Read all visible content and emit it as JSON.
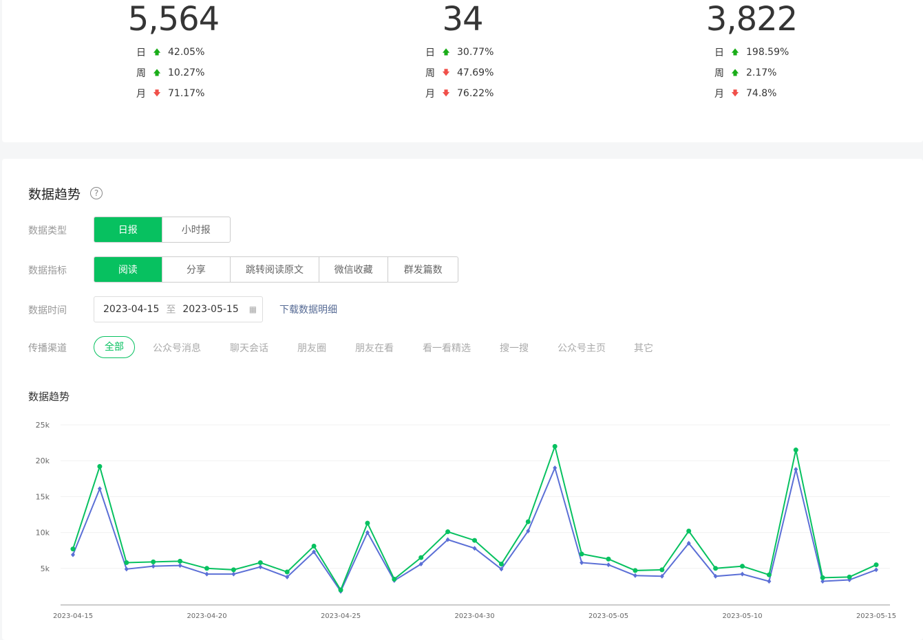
{
  "stats": [
    {
      "value": "5,564",
      "rows": [
        {
          "label": "日",
          "dir": "up",
          "pct": "42.05%"
        },
        {
          "label": "周",
          "dir": "up",
          "pct": "10.27%"
        },
        {
          "label": "月",
          "dir": "down",
          "pct": "71.17%"
        }
      ]
    },
    {
      "value": "34",
      "rows": [
        {
          "label": "日",
          "dir": "up",
          "pct": "30.77%"
        },
        {
          "label": "周",
          "dir": "down",
          "pct": "47.69%"
        },
        {
          "label": "月",
          "dir": "down",
          "pct": "76.22%"
        }
      ]
    },
    {
      "value": "3,822",
      "rows": [
        {
          "label": "日",
          "dir": "up",
          "pct": "198.59%"
        },
        {
          "label": "周",
          "dir": "up",
          "pct": "2.17%"
        },
        {
          "label": "月",
          "dir": "down",
          "pct": "74.8%"
        }
      ]
    }
  ],
  "arrows": {
    "up": "🡅",
    "down": "🡇"
  },
  "trend": {
    "title": "数据趋势",
    "help": "?",
    "type_label": "数据类型",
    "types": [
      "日报",
      "小时报"
    ],
    "metric_label": "数据指标",
    "metrics": [
      "阅读",
      "分享",
      "跳转阅读原文",
      "微信收藏",
      "群发篇数"
    ],
    "time_label": "数据时间",
    "date_from": "2023-04-15",
    "date_sep": "至",
    "date_to": "2023-05-15",
    "download": "下载数据明细",
    "channel_label": "传播渠道",
    "channels": [
      "全部",
      "公众号消息",
      "聊天会话",
      "朋友圈",
      "朋友在看",
      "看一看精选",
      "搜一搜",
      "公众号主页",
      "其它"
    ],
    "chart_title": "数据趋势"
  },
  "colors": {
    "accent": "#07c160",
    "series1": "#07c160",
    "series2": "#5b6fd6"
  },
  "chart_data": {
    "type": "line",
    "grid": true,
    "x": [
      "2023-04-15",
      "2023-04-16",
      "2023-04-17",
      "2023-04-18",
      "2023-04-19",
      "2023-04-20",
      "2023-04-21",
      "2023-04-22",
      "2023-04-23",
      "2023-04-24",
      "2023-04-25",
      "2023-04-26",
      "2023-04-27",
      "2023-04-28",
      "2023-04-29",
      "2023-04-30",
      "2023-05-01",
      "2023-05-02",
      "2023-05-03",
      "2023-05-04",
      "2023-05-05",
      "2023-05-06",
      "2023-05-07",
      "2023-05-08",
      "2023-05-09",
      "2023-05-10",
      "2023-05-11",
      "2023-05-12",
      "2023-05-13",
      "2023-05-14",
      "2023-05-15"
    ],
    "x_tick_labels": [
      "2023-04-15",
      "2023-04-20",
      "2023-04-25",
      "2023-04-30",
      "2023-05-05",
      "2023-05-10",
      "2023-05-15"
    ],
    "y_ticks": [
      "5k",
      "10k",
      "15k",
      "20k",
      "25k"
    ],
    "ylim": [
      0,
      25000
    ],
    "series": [
      {
        "color": "#07c160",
        "marker": "circle",
        "values": [
          7700,
          19200,
          5800,
          5900,
          6000,
          5000,
          4800,
          5800,
          4500,
          8100,
          2000,
          11300,
          3500,
          6500,
          10100,
          8900,
          5600,
          11500,
          22000,
          7000,
          6300,
          4700,
          4800,
          10200,
          5000,
          5300,
          4100,
          21500,
          3700,
          3800,
          5500
        ]
      },
      {
        "color": "#5b6fd6",
        "marker": "diamond",
        "values": [
          6900,
          16100,
          4900,
          5300,
          5400,
          4200,
          4200,
          5200,
          3800,
          7300,
          1800,
          10000,
          3300,
          5600,
          9000,
          7800,
          4900,
          10200,
          19000,
          5800,
          5500,
          4000,
          3900,
          8500,
          3900,
          4200,
          3200,
          18800,
          3200,
          3400,
          4800
        ]
      }
    ]
  }
}
